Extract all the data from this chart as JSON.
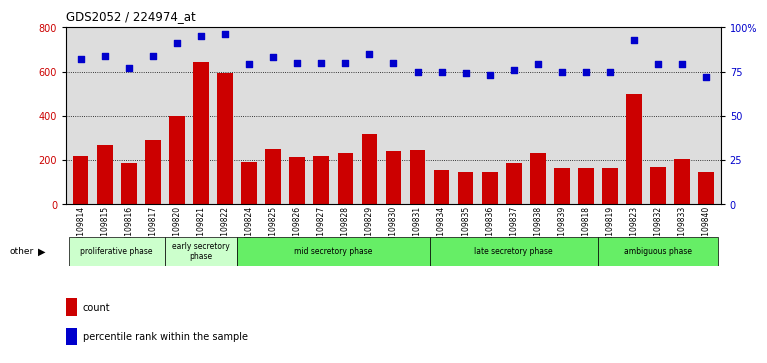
{
  "title": "GDS2052 / 224974_at",
  "samples": [
    "GSM109814",
    "GSM109815",
    "GSM109816",
    "GSM109817",
    "GSM109820",
    "GSM109821",
    "GSM109822",
    "GSM109824",
    "GSM109825",
    "GSM109826",
    "GSM109827",
    "GSM109828",
    "GSM109829",
    "GSM109830",
    "GSM109831",
    "GSM109834",
    "GSM109835",
    "GSM109836",
    "GSM109837",
    "GSM109838",
    "GSM109839",
    "GSM109818",
    "GSM109819",
    "GSM109823",
    "GSM109832",
    "GSM109833",
    "GSM109840"
  ],
  "counts": [
    220,
    270,
    185,
    290,
    400,
    645,
    595,
    190,
    248,
    215,
    220,
    230,
    320,
    240,
    245,
    155,
    145,
    148,
    185,
    230,
    165,
    165,
    165,
    500,
    170,
    205,
    145
  ],
  "percentiles": [
    82,
    84,
    77,
    84,
    91,
    95,
    96,
    79,
    83,
    80,
    80,
    80,
    85,
    80,
    75,
    75,
    74,
    73,
    76,
    79,
    75,
    75,
    75,
    93,
    79,
    79,
    72
  ],
  "phases_info": [
    {
      "name": "proliferative phase",
      "start": 0,
      "end": 4,
      "color": "#ccffcc"
    },
    {
      "name": "early secretory\nphase",
      "start": 4,
      "end": 7,
      "color": "#ccffcc"
    },
    {
      "name": "mid secretory phase",
      "start": 7,
      "end": 15,
      "color": "#66ee66"
    },
    {
      "name": "late secretory phase",
      "start": 15,
      "end": 22,
      "color": "#66ee66"
    },
    {
      "name": "ambiguous phase",
      "start": 22,
      "end": 27,
      "color": "#66ee66"
    }
  ],
  "bar_color": "#cc0000",
  "dot_color": "#0000cc",
  "left_ylim": [
    0,
    800
  ],
  "right_ylim": [
    0,
    100
  ],
  "left_yticks": [
    0,
    200,
    400,
    600,
    800
  ],
  "right_yticks": [
    0,
    25,
    50,
    75,
    100
  ],
  "right_yticklabels": [
    "0",
    "25",
    "50",
    "75",
    "100%"
  ],
  "bg_color": "#dddddd",
  "grid_lines": [
    200,
    400,
    600
  ]
}
